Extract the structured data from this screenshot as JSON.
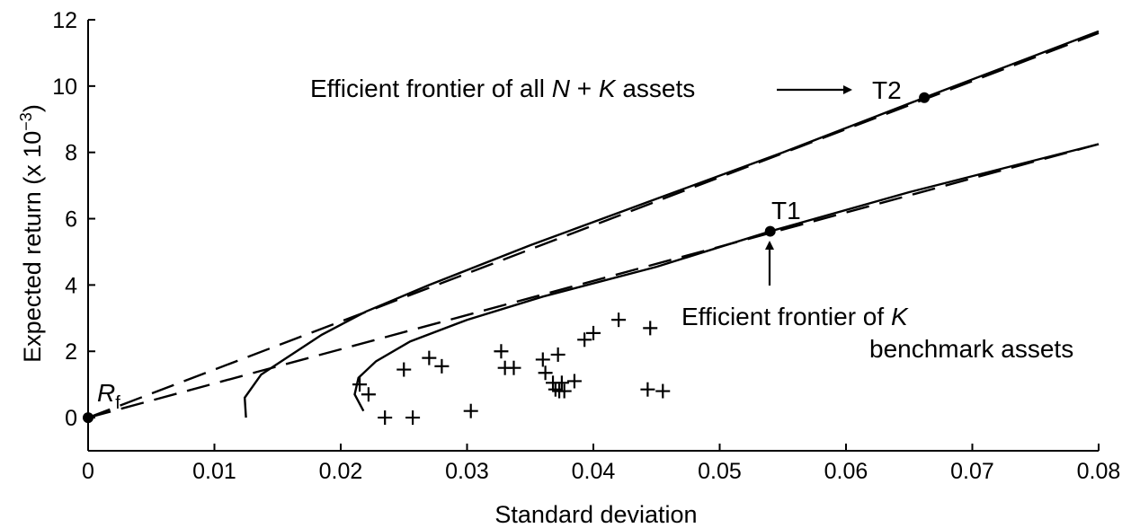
{
  "chart_data": {
    "type": "line",
    "title": "",
    "xlabel": "Standard deviation",
    "ylabel": "Expected return (x 10",
    "ylabel_exp": "−3",
    "ylabel_close": ")",
    "xlim": [
      0,
      0.08
    ],
    "ylim": [
      -1,
      12
    ],
    "x_ticks": [
      0,
      0.01,
      0.02,
      0.03,
      0.04,
      0.05,
      0.06,
      0.07,
      0.08
    ],
    "x_tick_labels": [
      "0",
      "0.01",
      "0.02",
      "0.03",
      "0.04",
      "0.05",
      "0.06",
      "0.07",
      "0.08"
    ],
    "y_ticks": [
      0,
      2,
      4,
      6,
      8,
      10,
      12
    ],
    "y_tick_labels": [
      "0",
      "2",
      "4",
      "6",
      "8",
      "10",
      "12"
    ],
    "grid": false,
    "series": [
      {
        "style": "solid",
        "points": [
          [
            0.0125,
            0
          ],
          [
            0.0124,
            0.6
          ],
          [
            0.0137,
            1.3
          ],
          [
            0.0157,
            1.8
          ],
          [
            0.0185,
            2.5
          ],
          [
            0.022,
            3.2
          ],
          [
            0.027,
            4.0
          ],
          [
            0.035,
            5.2
          ],
          [
            0.045,
            6.6
          ],
          [
            0.055,
            8.0
          ],
          [
            0.0662,
            9.65
          ],
          [
            0.08,
            11.65
          ]
        ]
      },
      {
        "style": "solid",
        "points": [
          [
            0.0218,
            0.2
          ],
          [
            0.0211,
            0.7
          ],
          [
            0.0214,
            1.2
          ],
          [
            0.0228,
            1.7
          ],
          [
            0.0255,
            2.3
          ],
          [
            0.03,
            2.95
          ],
          [
            0.036,
            3.65
          ],
          [
            0.045,
            4.55
          ],
          [
            0.054,
            5.62
          ],
          [
            0.065,
            6.8
          ],
          [
            0.08,
            8.25
          ]
        ]
      },
      {
        "style": "dashed",
        "points": [
          [
            0.0,
            0.0
          ],
          [
            0.08,
            11.6
          ]
        ]
      },
      {
        "style": "dashed",
        "points": [
          [
            0.0,
            0.0
          ],
          [
            0.08,
            8.25
          ]
        ]
      }
    ],
    "scatter": [
      [
        0.0215,
        1.0
      ],
      [
        0.0222,
        0.7
      ],
      [
        0.0235,
        0.0
      ],
      [
        0.025,
        1.45
      ],
      [
        0.0257,
        0.0
      ],
      [
        0.027,
        1.8
      ],
      [
        0.028,
        1.55
      ],
      [
        0.0303,
        0.2
      ],
      [
        0.0327,
        2.0
      ],
      [
        0.033,
        1.5
      ],
      [
        0.0337,
        1.5
      ],
      [
        0.036,
        1.75
      ],
      [
        0.0362,
        1.35
      ],
      [
        0.0368,
        1.05
      ],
      [
        0.037,
        0.85
      ],
      [
        0.0372,
        1.9
      ],
      [
        0.0373,
        0.8
      ],
      [
        0.0375,
        1.05
      ],
      [
        0.0377,
        0.8
      ],
      [
        0.0385,
        1.1
      ],
      [
        0.0393,
        2.35
      ],
      [
        0.04,
        2.55
      ],
      [
        0.042,
        2.95
      ],
      [
        0.0443,
        0.85
      ],
      [
        0.0445,
        2.7
      ],
      [
        0.0455,
        0.8
      ]
    ],
    "points": [
      {
        "label": "R",
        "label_sub": "f",
        "x": 0.0,
        "y": 0.0
      },
      {
        "label": "T1",
        "x": 0.054,
        "y": 5.62
      },
      {
        "label": "T2",
        "x": 0.0662,
        "y": 9.65
      }
    ],
    "annotations": [
      {
        "text_a": "Efficient frontier of all ",
        "text_n": "N",
        "text_b": " + ",
        "text_k": "K",
        "text_c": " assets"
      },
      {
        "line1_a": "Efficient frontier of ",
        "line1_k": "K",
        "line2": "benchmark assets"
      }
    ]
  }
}
